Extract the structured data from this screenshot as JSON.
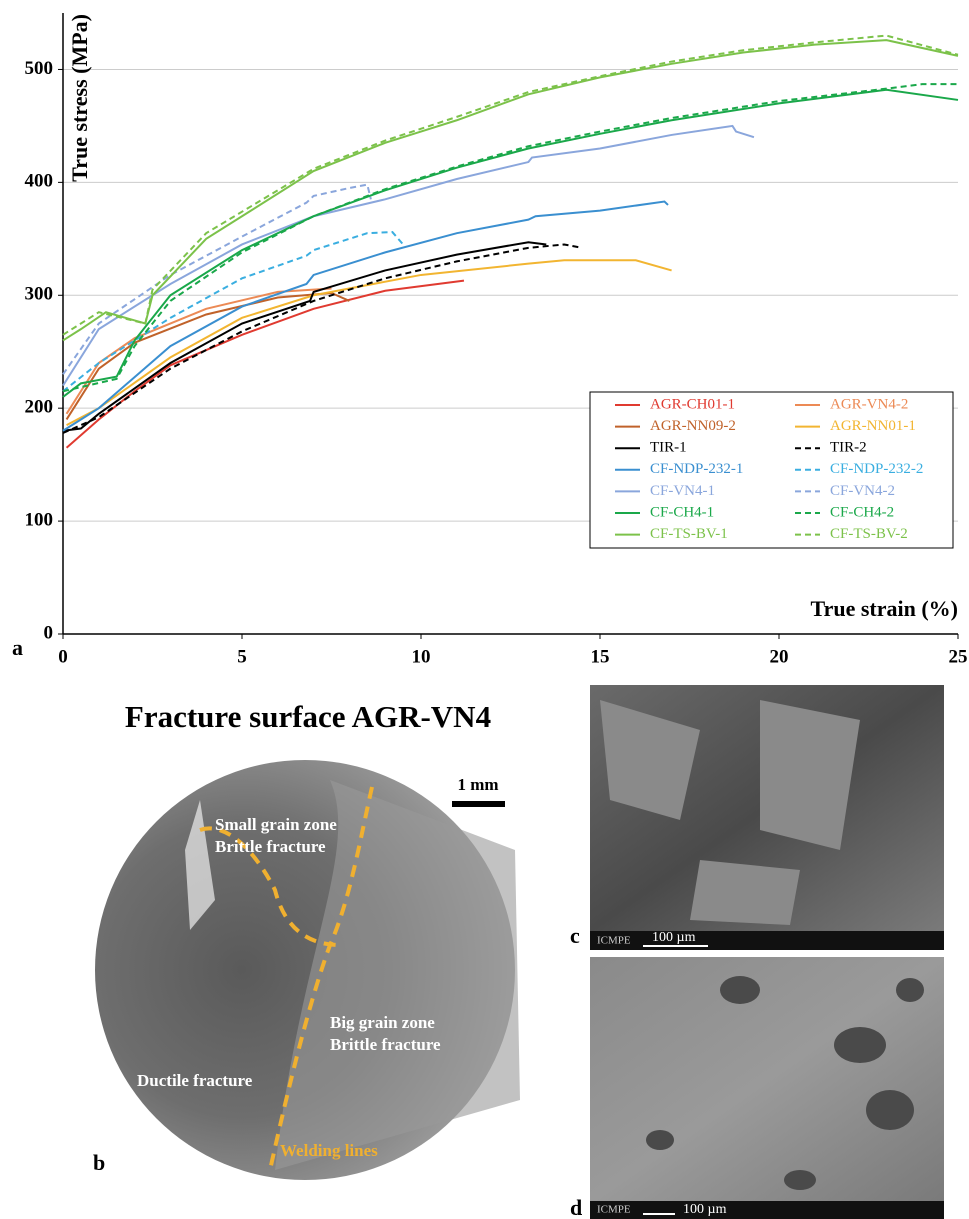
{
  "chart_data": {
    "type": "line",
    "panel_label": "a",
    "y_label": "True stress (MPa)",
    "x_label": "True strain (%)",
    "xlim": [
      0,
      25
    ],
    "ylim": [
      0,
      550
    ],
    "xticks": [
      0,
      5,
      10,
      15,
      20,
      25
    ],
    "yticks": [
      0,
      100,
      200,
      300,
      400,
      500
    ],
    "grid": true,
    "legend": "lower right",
    "series": [
      {
        "name": "AGR-CH01-1",
        "color": "#e03a30",
        "linestyle": "solid",
        "x": [
          0.1,
          1,
          2,
          3,
          5,
          7,
          9,
          11.2
        ],
        "values": [
          165,
          190,
          215,
          238,
          265,
          288,
          304,
          313
        ]
      },
      {
        "name": "AGR-VN4-2",
        "color": "#ec8a55",
        "linestyle": "solid",
        "x": [
          0.1,
          1,
          2,
          4,
          6,
          7.5
        ],
        "values": [
          195,
          240,
          262,
          288,
          303,
          306
        ]
      },
      {
        "name": "AGR-NN09-2",
        "color": "#c0622a",
        "linestyle": "solid",
        "x": [
          0.1,
          1,
          2,
          4,
          6,
          7.5,
          8
        ],
        "values": [
          190,
          235,
          258,
          283,
          298,
          302,
          295
        ]
      },
      {
        "name": "AGR-NN01-1",
        "color": "#f2b531",
        "linestyle": "solid",
        "x": [
          0.1,
          1,
          3,
          5,
          7,
          10,
          13,
          14,
          16,
          17
        ],
        "values": [
          185,
          200,
          245,
          280,
          300,
          318,
          328,
          331,
          331,
          322
        ]
      },
      {
        "name": "TIR-1",
        "color": "#000000",
        "linestyle": "solid",
        "x": [
          0,
          0.5,
          1,
          3,
          5,
          6.9,
          7,
          9,
          11,
          13,
          13.5
        ],
        "values": [
          180,
          182,
          195,
          240,
          275,
          295,
          303,
          322,
          336,
          347,
          345
        ]
      },
      {
        "name": "TIR-2",
        "color": "#000000",
        "linestyle": "dashed",
        "x": [
          0,
          1,
          3,
          5,
          7,
          9,
          11,
          13,
          14,
          14.5
        ],
        "values": [
          178,
          192,
          235,
          268,
          295,
          315,
          330,
          342,
          345,
          342
        ]
      },
      {
        "name": "CF-NDP-232-1",
        "color": "#3a8fd0",
        "linestyle": "solid",
        "x": [
          0,
          0.5,
          1,
          3,
          5,
          6.8,
          7,
          9,
          11,
          13,
          13.2,
          15,
          16.8,
          16.9
        ],
        "values": [
          180,
          190,
          200,
          255,
          290,
          310,
          318,
          338,
          355,
          367,
          370,
          375,
          383,
          380
        ]
      },
      {
        "name": "CF-NDP-232-2",
        "color": "#3aaee0",
        "linestyle": "dashed",
        "x": [
          0,
          1,
          3,
          5,
          6.8,
          7,
          8.5,
          9.2,
          9.5
        ],
        "values": [
          215,
          240,
          280,
          315,
          335,
          340,
          355,
          356,
          345
        ]
      },
      {
        "name": "CF-VN4-1",
        "color": "#8aa6dc",
        "linestyle": "solid",
        "x": [
          0,
          1,
          3,
          5,
          7,
          9,
          11,
          13,
          13.1,
          15,
          17,
          18.7,
          18.8,
          19.3
        ],
        "values": [
          220,
          270,
          310,
          345,
          370,
          385,
          403,
          418,
          422,
          430,
          442,
          450,
          445,
          440
        ]
      },
      {
        "name": "CF-VN4-2",
        "color": "#8aa6dc",
        "linestyle": "dashed",
        "x": [
          0,
          1,
          3,
          5,
          6.8,
          7,
          8,
          8.5,
          8.6
        ],
        "values": [
          230,
          275,
          318,
          352,
          382,
          388,
          395,
          398,
          385
        ]
      },
      {
        "name": "CF-CH4-1",
        "color": "#1aa84a",
        "linestyle": "solid",
        "x": [
          0,
          0.5,
          1.5,
          2,
          3,
          5,
          7,
          9,
          11,
          13,
          15,
          17,
          20,
          23,
          25
        ],
        "values": [
          210,
          222,
          228,
          260,
          300,
          340,
          370,
          393,
          413,
          430,
          443,
          455,
          470,
          482,
          473
        ]
      },
      {
        "name": "CF-CH4-2",
        "color": "#1aa84a",
        "linestyle": "dashed",
        "x": [
          0,
          1.5,
          2,
          3,
          5,
          7,
          9,
          11,
          13,
          15,
          17,
          20,
          23,
          24,
          25
        ],
        "values": [
          215,
          226,
          255,
          295,
          338,
          370,
          394,
          414,
          432,
          445,
          457,
          472,
          483,
          487,
          487
        ]
      },
      {
        "name": "CF-TS-BV-1",
        "color": "#7cc24a",
        "linestyle": "solid",
        "x": [
          0,
          0.5,
          1.2,
          2.3,
          2.5,
          4,
          5,
          7,
          9,
          11,
          13,
          15,
          17,
          19,
          21,
          23,
          25
        ],
        "values": [
          260,
          270,
          285,
          275,
          300,
          350,
          370,
          410,
          435,
          455,
          478,
          493,
          505,
          515,
          522,
          526,
          512
        ]
      },
      {
        "name": "CF-TS-BV-2",
        "color": "#7cc24a",
        "linestyle": "dashed",
        "x": [
          0,
          1,
          2.3,
          2.5,
          4,
          7,
          9,
          11,
          13,
          15,
          17,
          19,
          21,
          23,
          25
        ],
        "values": [
          265,
          285,
          275,
          305,
          355,
          412,
          437,
          458,
          480,
          494,
          507,
          517,
          524,
          530,
          513
        ]
      }
    ]
  },
  "panel_b": {
    "title": "Fracture surface AGR-VN4",
    "label": "b",
    "scale": "1 mm",
    "small_zone": "Small grain zone",
    "small_zone_type": "Brittle fracture",
    "big_zone": "Big grain zone",
    "big_zone_type": "Brittle fracture",
    "ductile": "Ductile fracture",
    "welding": "Welding lines"
  },
  "panel_c": {
    "label": "c",
    "logo": "ICMPE",
    "scale": "100 µm"
  },
  "panel_d": {
    "label": "d",
    "logo": "ICMPE",
    "scale": "100 µm"
  }
}
